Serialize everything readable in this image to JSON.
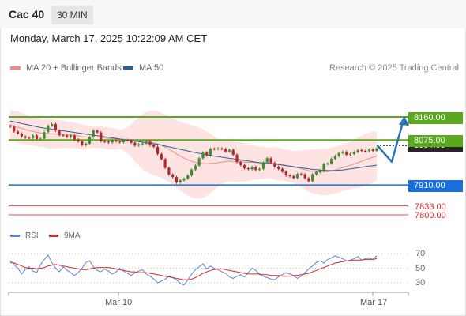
{
  "header": {
    "title": "Cac 40",
    "timeframe": "30 MIN"
  },
  "datetime": "Monday, March 17, 2025 10:22:09 AM CET",
  "legend": {
    "items": [
      {
        "label": "MA 20 + Bollinger Bands",
        "color": "#f08c84"
      },
      {
        "label": "MA 50",
        "color": "#2f5f9a"
      }
    ],
    "credit": "Research © 2025 Trading Central"
  },
  "levels": {
    "resistance_2": {
      "label": "8160.00",
      "color": "#59a81d"
    },
    "resistance_1": {
      "label": "8075.00",
      "color": "#59a81d"
    },
    "current": {
      "label": "8054.00",
      "color": "#262626"
    },
    "pivot": {
      "label": "7910.00",
      "color": "#1a6fde"
    },
    "support_1": {
      "label": "7833.00",
      "color": "#e05050"
    },
    "support_2": {
      "label": "7800.00",
      "color": "#e05050"
    }
  },
  "rsi_legend": {
    "items": [
      {
        "label": "RSI",
        "color": "#5a83d6"
      },
      {
        "label": "9MA",
        "color": "#d62d2d"
      }
    ]
  },
  "x_axis": {
    "labels": [
      "Mar 10",
      "Mar 17"
    ]
  },
  "chart_data": [
    {
      "type": "candlestick",
      "title": "Cac 40",
      "interval": "30 MIN",
      "levels": [
        8160.0,
        8075.0,
        8054.0,
        7910.0,
        7833.0,
        7800.0
      ],
      "price_range": [
        7800,
        8160
      ],
      "series": [
        {
          "name": "Close",
          "values": [
            8124,
            8107,
            8099,
            8088,
            8084,
            8082,
            8092,
            8079,
            8080,
            8104,
            8128,
            8134,
            8110,
            8093,
            8092,
            8086,
            8092,
            8077,
            8070,
            8056,
            8062,
            8085,
            8110,
            8103,
            8071,
            8069,
            8066,
            8073,
            8070,
            8067,
            8075,
            8074,
            8065,
            8055,
            8059,
            8062,
            8069,
            8056,
            8050,
            8024,
            8005,
            7973,
            7948,
            7939,
            7919,
            7927,
            7933,
            7945,
            7966,
            7981,
            8008,
            8029,
            8019,
            8043,
            8042,
            8044,
            8042,
            8033,
            8039,
            8021,
            7994,
            7983,
            7971,
            7968,
            7976,
            7965,
            7969,
            7993,
            8008,
            7991,
            7977,
            7969,
            7959,
            7945,
            7942,
            7936,
            7950,
            7949,
            7935,
            7924,
            7949,
            7957,
            7964,
            7987,
            7989,
            8006,
            8016,
            8027,
            8032,
            8021,
            8024,
            8031,
            8038,
            8035,
            8034,
            8040,
            8035,
            8044
          ]
        },
        {
          "name": "MA 20",
          "values": [
            8130,
            8126,
            8122,
            8118,
            8114,
            8110,
            8107,
            8104,
            8101,
            8099,
            8098,
            8098,
            8097,
            8096,
            8096,
            8095,
            8094,
            8092,
            8090,
            8087,
            8086,
            8085,
            8086,
            8086,
            8085,
            8083,
            8081,
            8080,
            8079,
            8078,
            8077,
            8075,
            8073,
            8071,
            8069,
            8068,
            8068,
            8067,
            8065,
            8061,
            8056,
            8049,
            8041,
            8033,
            8024,
            8016,
            8009,
            8002,
            7997,
            7993,
            7990,
            7989,
            7988,
            7989,
            7990,
            7992,
            7994,
            7996,
            7997,
            7997,
            7996,
            7995,
            7994,
            7993,
            7993,
            7992,
            7991,
            7991,
            7991,
            7990,
            7989,
            7987,
            7985,
            7982,
            7979,
            7976,
            7973,
            7970,
            7966,
            7962,
            7960,
            7959,
            7958,
            7958,
            7959,
            7961,
            7965,
            7969,
            7974,
            7978,
            7982,
            7987,
            7992,
            7997,
            8002,
            8007,
            8012,
            8016
          ]
        },
        {
          "name": "MA 50",
          "values": [
            8145,
            8142,
            8139,
            8136,
            8133,
            8130,
            8127,
            8124,
            8121,
            8119,
            8117,
            8115,
            8113,
            8111,
            8109,
            8107,
            8105,
            8103,
            8101,
            8099,
            8097,
            8095,
            8093,
            8091,
            8089,
            8087,
            8085,
            8083,
            8081,
            8079,
            8077,
            8075,
            8073,
            8071,
            8069,
            8067,
            8065,
            8063,
            8061,
            8059,
            8056,
            8053,
            8050,
            8047,
            8044,
            8041,
            8038,
            8035,
            8032,
            8029,
            8026,
            8023,
            8020,
            8018,
            8016,
            8014,
            8012,
            8010,
            8008,
            8006,
            8004,
            8002,
            8000,
            7998,
            7996,
            7994,
            7992,
            7990,
            7989,
            7988,
            7987,
            7985,
            7983,
            7981,
            7979,
            7977,
            7975,
            7973,
            7971,
            7969,
            7967,
            7966,
            7965,
            7964,
            7963,
            7963,
            7963,
            7964,
            7965,
            7967,
            7969,
            7971,
            7973,
            7975,
            7977,
            7979,
            7981,
            7983
          ]
        }
      ],
      "forecast": [
        8054,
        7995,
        8160
      ]
    },
    {
      "type": "line",
      "title": "RSI",
      "ylim": [
        20,
        80
      ],
      "yticks": [
        70,
        50,
        30
      ],
      "series": [
        {
          "name": "RSI",
          "values": [
            60,
            55,
            50,
            42,
            48,
            52,
            46,
            44,
            55,
            62,
            68,
            58,
            50,
            45,
            52,
            47,
            44,
            40,
            44,
            50,
            58,
            60,
            52,
            47,
            45,
            49,
            46,
            42,
            45,
            50,
            46,
            43,
            40,
            44,
            46,
            48,
            42,
            39,
            35,
            30,
            32,
            35,
            39,
            37,
            34,
            29,
            27,
            34,
            42,
            48,
            52,
            56,
            49,
            53,
            50,
            48,
            45,
            43,
            38,
            36,
            39,
            41,
            38,
            44,
            50,
            47,
            41,
            39,
            37,
            35,
            34,
            38,
            41,
            44,
            42,
            40,
            36,
            39,
            44,
            49,
            53,
            58,
            60,
            57,
            62,
            64,
            67,
            65,
            63,
            60,
            61,
            63,
            66,
            61,
            63,
            64,
            62,
            67
          ]
        },
        {
          "name": "9MA",
          "values": [
            58,
            57,
            55,
            53,
            51,
            50,
            50,
            49,
            50,
            51,
            53,
            54,
            55,
            54,
            53,
            52,
            51,
            50,
            49,
            48,
            48,
            49,
            50,
            51,
            51,
            51,
            51,
            50,
            49,
            48,
            47,
            46,
            45,
            45,
            44,
            44,
            44,
            43,
            42,
            41,
            40,
            39,
            38,
            37,
            36,
            35,
            34,
            34,
            35,
            37,
            40,
            43,
            45,
            47,
            48,
            49,
            49,
            48,
            47,
            46,
            45,
            44,
            43,
            42,
            42,
            42,
            42,
            41,
            41,
            40,
            40,
            40,
            39,
            39,
            39,
            40,
            40,
            41,
            42,
            43,
            45,
            47,
            49,
            51,
            53,
            55,
            57,
            58,
            59,
            60,
            60,
            61,
            61,
            61,
            62,
            62,
            62,
            63
          ]
        }
      ]
    }
  ]
}
